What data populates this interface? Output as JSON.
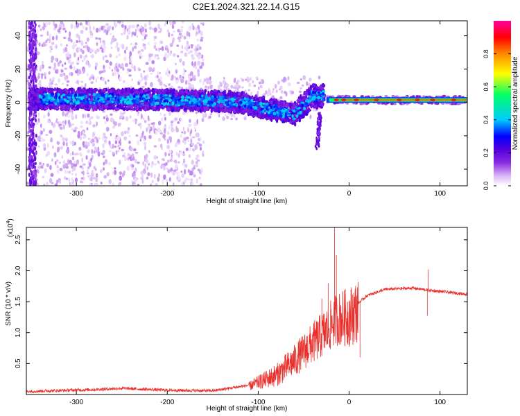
{
  "figure": {
    "title": "C2E1.2024.321.22.14.G15"
  },
  "chart_data": [
    {
      "type": "heatmap",
      "panel": "top",
      "xlabel": "Height of straight line (km)",
      "ylabel": "Frequency (Hz)",
      "xlim": [
        -355,
        130
      ],
      "ylim": [
        -50,
        49
      ],
      "xticks": [
        -300,
        -200,
        -100,
        0,
        100
      ],
      "yticks": [
        -40,
        -20,
        0,
        20,
        40
      ],
      "colorbar": {
        "label": "Normalized spectral amplitude",
        "range": [
          0.0,
          1.0
        ],
        "ticks": [
          0.0,
          0.2,
          0.4,
          0.6,
          0.8
        ],
        "colormap": [
          "#ffffff",
          "#d9b8f5",
          "#8a2be2",
          "#5500dd",
          "#0000ff",
          "#00ccff",
          "#00ff66",
          "#ffff00",
          "#ff8800",
          "#ff0000",
          "#ff00a0"
        ]
      },
      "center_frequency_trend": [
        {
          "x": -340,
          "y": 2
        },
        {
          "x": -250,
          "y": 2
        },
        {
          "x": -160,
          "y": 1
        },
        {
          "x": -120,
          "y": 0
        },
        {
          "x": -80,
          "y": -5
        },
        {
          "x": -60,
          "y": -7
        },
        {
          "x": -40,
          "y": 4
        },
        {
          "x": -25,
          "y": 4
        },
        {
          "x": -20,
          "y": 1.5
        },
        {
          "x": 130,
          "y": 1.5
        }
      ]
    },
    {
      "type": "line",
      "panel": "bottom",
      "xlabel": "Height of straight line (km)",
      "ylabel": "SNR (10 * v/v)",
      "y_multiplier": "(x10",
      "y_multiplier_exp": "4",
      "y_multiplier_close": ")",
      "xlim": [
        -355,
        130
      ],
      "ylim": [
        0,
        2.7
      ],
      "xticks": [
        -300,
        -200,
        -100,
        0,
        100
      ],
      "yticks": [
        0.5,
        1.0,
        1.5,
        2.0,
        2.5
      ],
      "series_color": "#e8302c",
      "envelope_points": [
        {
          "x": -355,
          "y": 0.05
        },
        {
          "x": -280,
          "y": 0.08
        },
        {
          "x": -250,
          "y": 0.1
        },
        {
          "x": -200,
          "y": 0.07
        },
        {
          "x": -150,
          "y": 0.06
        },
        {
          "x": -110,
          "y": 0.15
        },
        {
          "x": -80,
          "y": 0.35
        },
        {
          "x": -60,
          "y": 0.6
        },
        {
          "x": -40,
          "y": 0.9
        },
        {
          "x": -25,
          "y": 1.1
        },
        {
          "x": -15,
          "y": 1.3
        },
        {
          "x": 0,
          "y": 1.35
        },
        {
          "x": 20,
          "y": 1.6
        },
        {
          "x": 40,
          "y": 1.7
        },
        {
          "x": 70,
          "y": 1.72
        },
        {
          "x": 90,
          "y": 1.68
        },
        {
          "x": 130,
          "y": 1.62
        }
      ],
      "spikes": [
        {
          "x": -16,
          "y": 2.7
        },
        {
          "x": -14,
          "y": 2.25
        },
        {
          "x": -23,
          "y": 1.8
        },
        {
          "x": -30,
          "y": 1.55
        },
        {
          "x": 12,
          "y": 0.6
        },
        {
          "x": 86,
          "y": 1.27
        },
        {
          "x": 87,
          "y": 2.02
        }
      ]
    }
  ]
}
